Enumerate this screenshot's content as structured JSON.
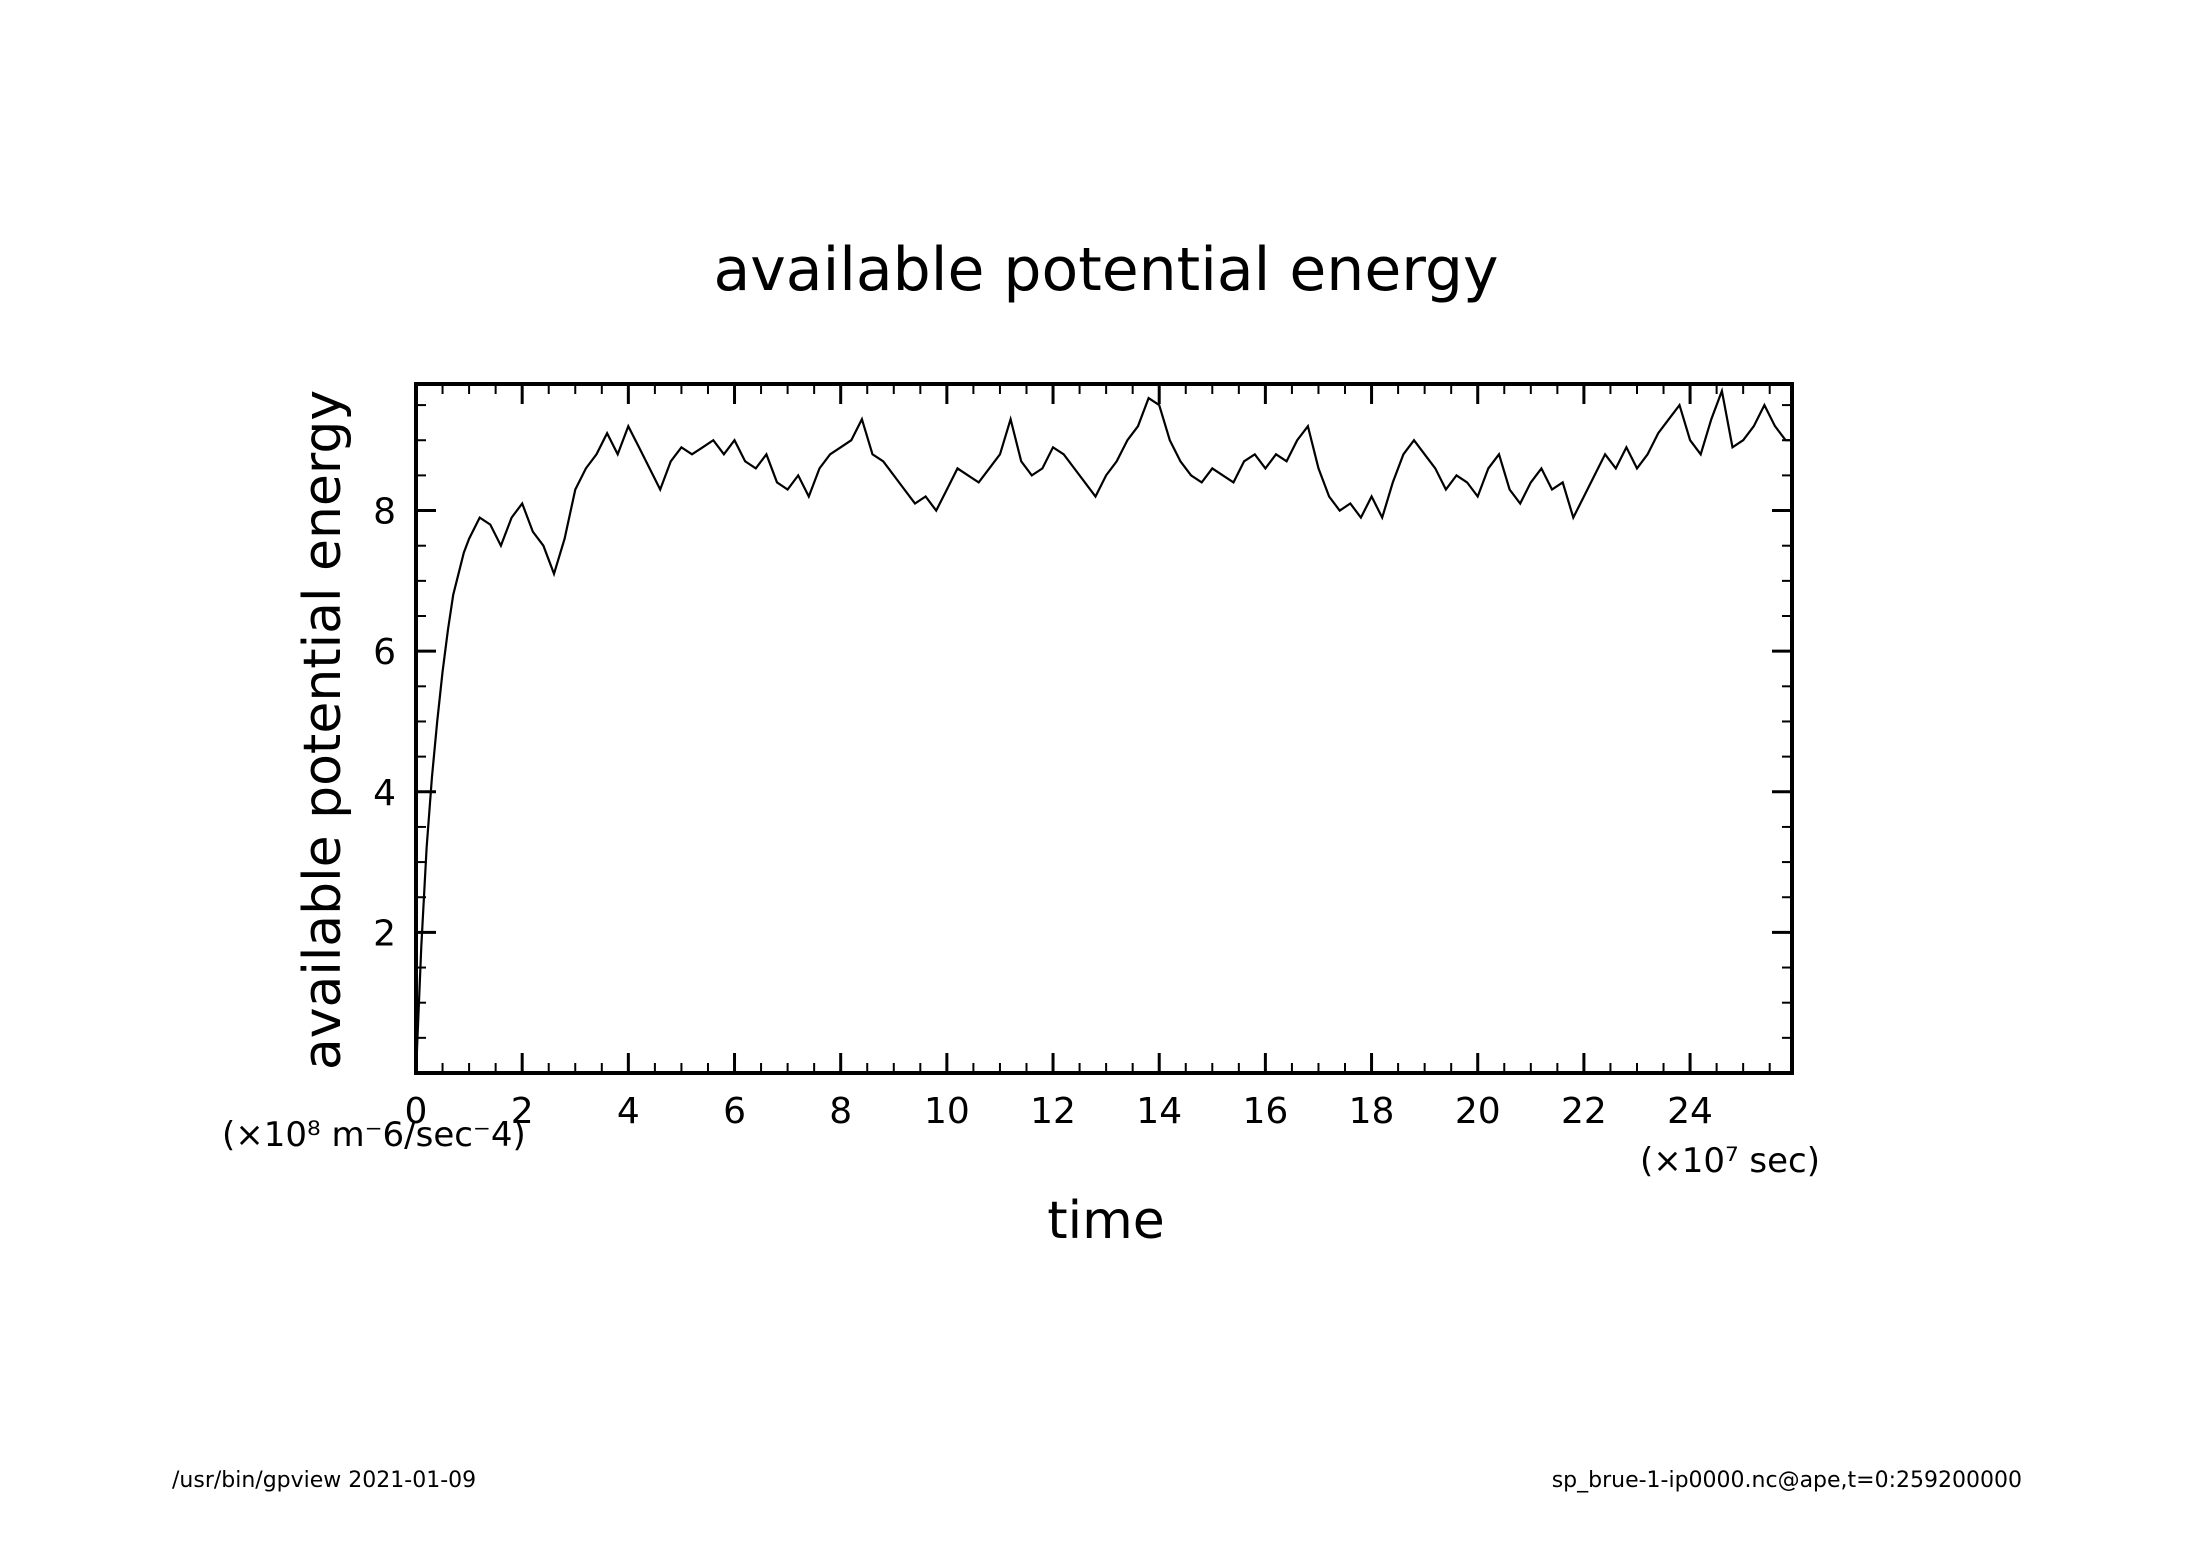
{
  "chart_data": {
    "type": "line",
    "title": "available potential energy",
    "xlabel": "time",
    "ylabel": "available potential energy",
    "x_unit": "(×10⁷ sec)",
    "y_unit": "(×10⁸ m⁻6/sec⁻4)",
    "xlim": [
      0,
      25.92
    ],
    "ylim": [
      0,
      9.8
    ],
    "x_ticks": [
      0,
      2,
      4,
      6,
      8,
      10,
      12,
      14,
      16,
      18,
      20,
      22,
      24
    ],
    "y_ticks": [
      2,
      4,
      6,
      8
    ],
    "grid": false,
    "series": [
      {
        "x": [
          0,
          0.1,
          0.2,
          0.3,
          0.4,
          0.5,
          0.6,
          0.7,
          0.8,
          0.9,
          1.0,
          1.2,
          1.4,
          1.6,
          1.8,
          2.0,
          2.2,
          2.4,
          2.6,
          2.8,
          3.0,
          3.2,
          3.4,
          3.6,
          3.8,
          4.0,
          4.2,
          4.4,
          4.6,
          4.8,
          5.0,
          5.2,
          5.4,
          5.6,
          5.8,
          6.0,
          6.2,
          6.4,
          6.6,
          6.8,
          7.0,
          7.2,
          7.4,
          7.6,
          7.8,
          8.0,
          8.2,
          8.4,
          8.6,
          8.8,
          9.0,
          9.2,
          9.4,
          9.6,
          9.8,
          10.0,
          10.2,
          10.4,
          10.6,
          10.8,
          11.0,
          11.2,
          11.4,
          11.6,
          11.8,
          12.0,
          12.2,
          12.4,
          12.6,
          12.8,
          13.0,
          13.2,
          13.4,
          13.6,
          13.8,
          14.0,
          14.2,
          14.4,
          14.6,
          14.8,
          15.0,
          15.2,
          15.4,
          15.6,
          15.8,
          16.0,
          16.2,
          16.4,
          16.6,
          16.8,
          17.0,
          17.2,
          17.4,
          17.6,
          17.8,
          18.0,
          18.2,
          18.4,
          18.6,
          18.8,
          19.0,
          19.2,
          19.4,
          19.6,
          19.8,
          20.0,
          20.2,
          20.4,
          20.6,
          20.8,
          21.0,
          21.2,
          21.4,
          21.6,
          21.8,
          22.0,
          22.2,
          22.4,
          22.6,
          22.8,
          23.0,
          23.2,
          23.4,
          23.6,
          23.8,
          24.0,
          24.2,
          24.4,
          24.6,
          24.8,
          25.0,
          25.2,
          25.4,
          25.6,
          25.8,
          25.92
        ],
        "y": [
          0.0,
          1.8,
          3.2,
          4.2,
          5.0,
          5.7,
          6.3,
          6.8,
          7.1,
          7.4,
          7.6,
          7.9,
          7.8,
          7.5,
          7.9,
          8.1,
          7.7,
          7.5,
          7.1,
          7.6,
          8.3,
          8.6,
          8.8,
          9.1,
          8.8,
          9.2,
          8.9,
          8.6,
          8.3,
          8.7,
          8.9,
          8.8,
          8.9,
          9.0,
          8.8,
          9.0,
          8.7,
          8.6,
          8.8,
          8.4,
          8.3,
          8.5,
          8.2,
          8.6,
          8.8,
          8.9,
          9.0,
          9.3,
          8.8,
          8.7,
          8.5,
          8.3,
          8.1,
          8.2,
          8.0,
          8.3,
          8.6,
          8.5,
          8.4,
          8.6,
          8.8,
          9.3,
          8.7,
          8.5,
          8.6,
          8.9,
          8.8,
          8.6,
          8.4,
          8.2,
          8.5,
          8.7,
          9.0,
          9.2,
          9.6,
          9.5,
          9.0,
          8.7,
          8.5,
          8.4,
          8.6,
          8.5,
          8.4,
          8.7,
          8.8,
          8.6,
          8.8,
          8.7,
          9.0,
          9.2,
          8.6,
          8.2,
          8.0,
          8.1,
          7.9,
          8.2,
          7.9,
          8.4,
          8.8,
          9.0,
          8.8,
          8.6,
          8.3,
          8.5,
          8.4,
          8.2,
          8.6,
          8.8,
          8.3,
          8.1,
          8.4,
          8.6,
          8.3,
          8.4,
          7.9,
          8.2,
          8.5,
          8.8,
          8.6,
          8.9,
          8.6,
          8.8,
          9.1,
          9.3,
          9.5,
          9.0,
          8.8,
          9.3,
          9.7,
          8.9,
          9.0,
          9.2,
          9.5,
          9.2,
          9.0,
          9.0
        ]
      }
    ]
  },
  "footer": {
    "left": "/usr/bin/gpview   2021-01-09",
    "right": "sp_brue-1-ip0000.nc@ape,t=0:259200000"
  }
}
